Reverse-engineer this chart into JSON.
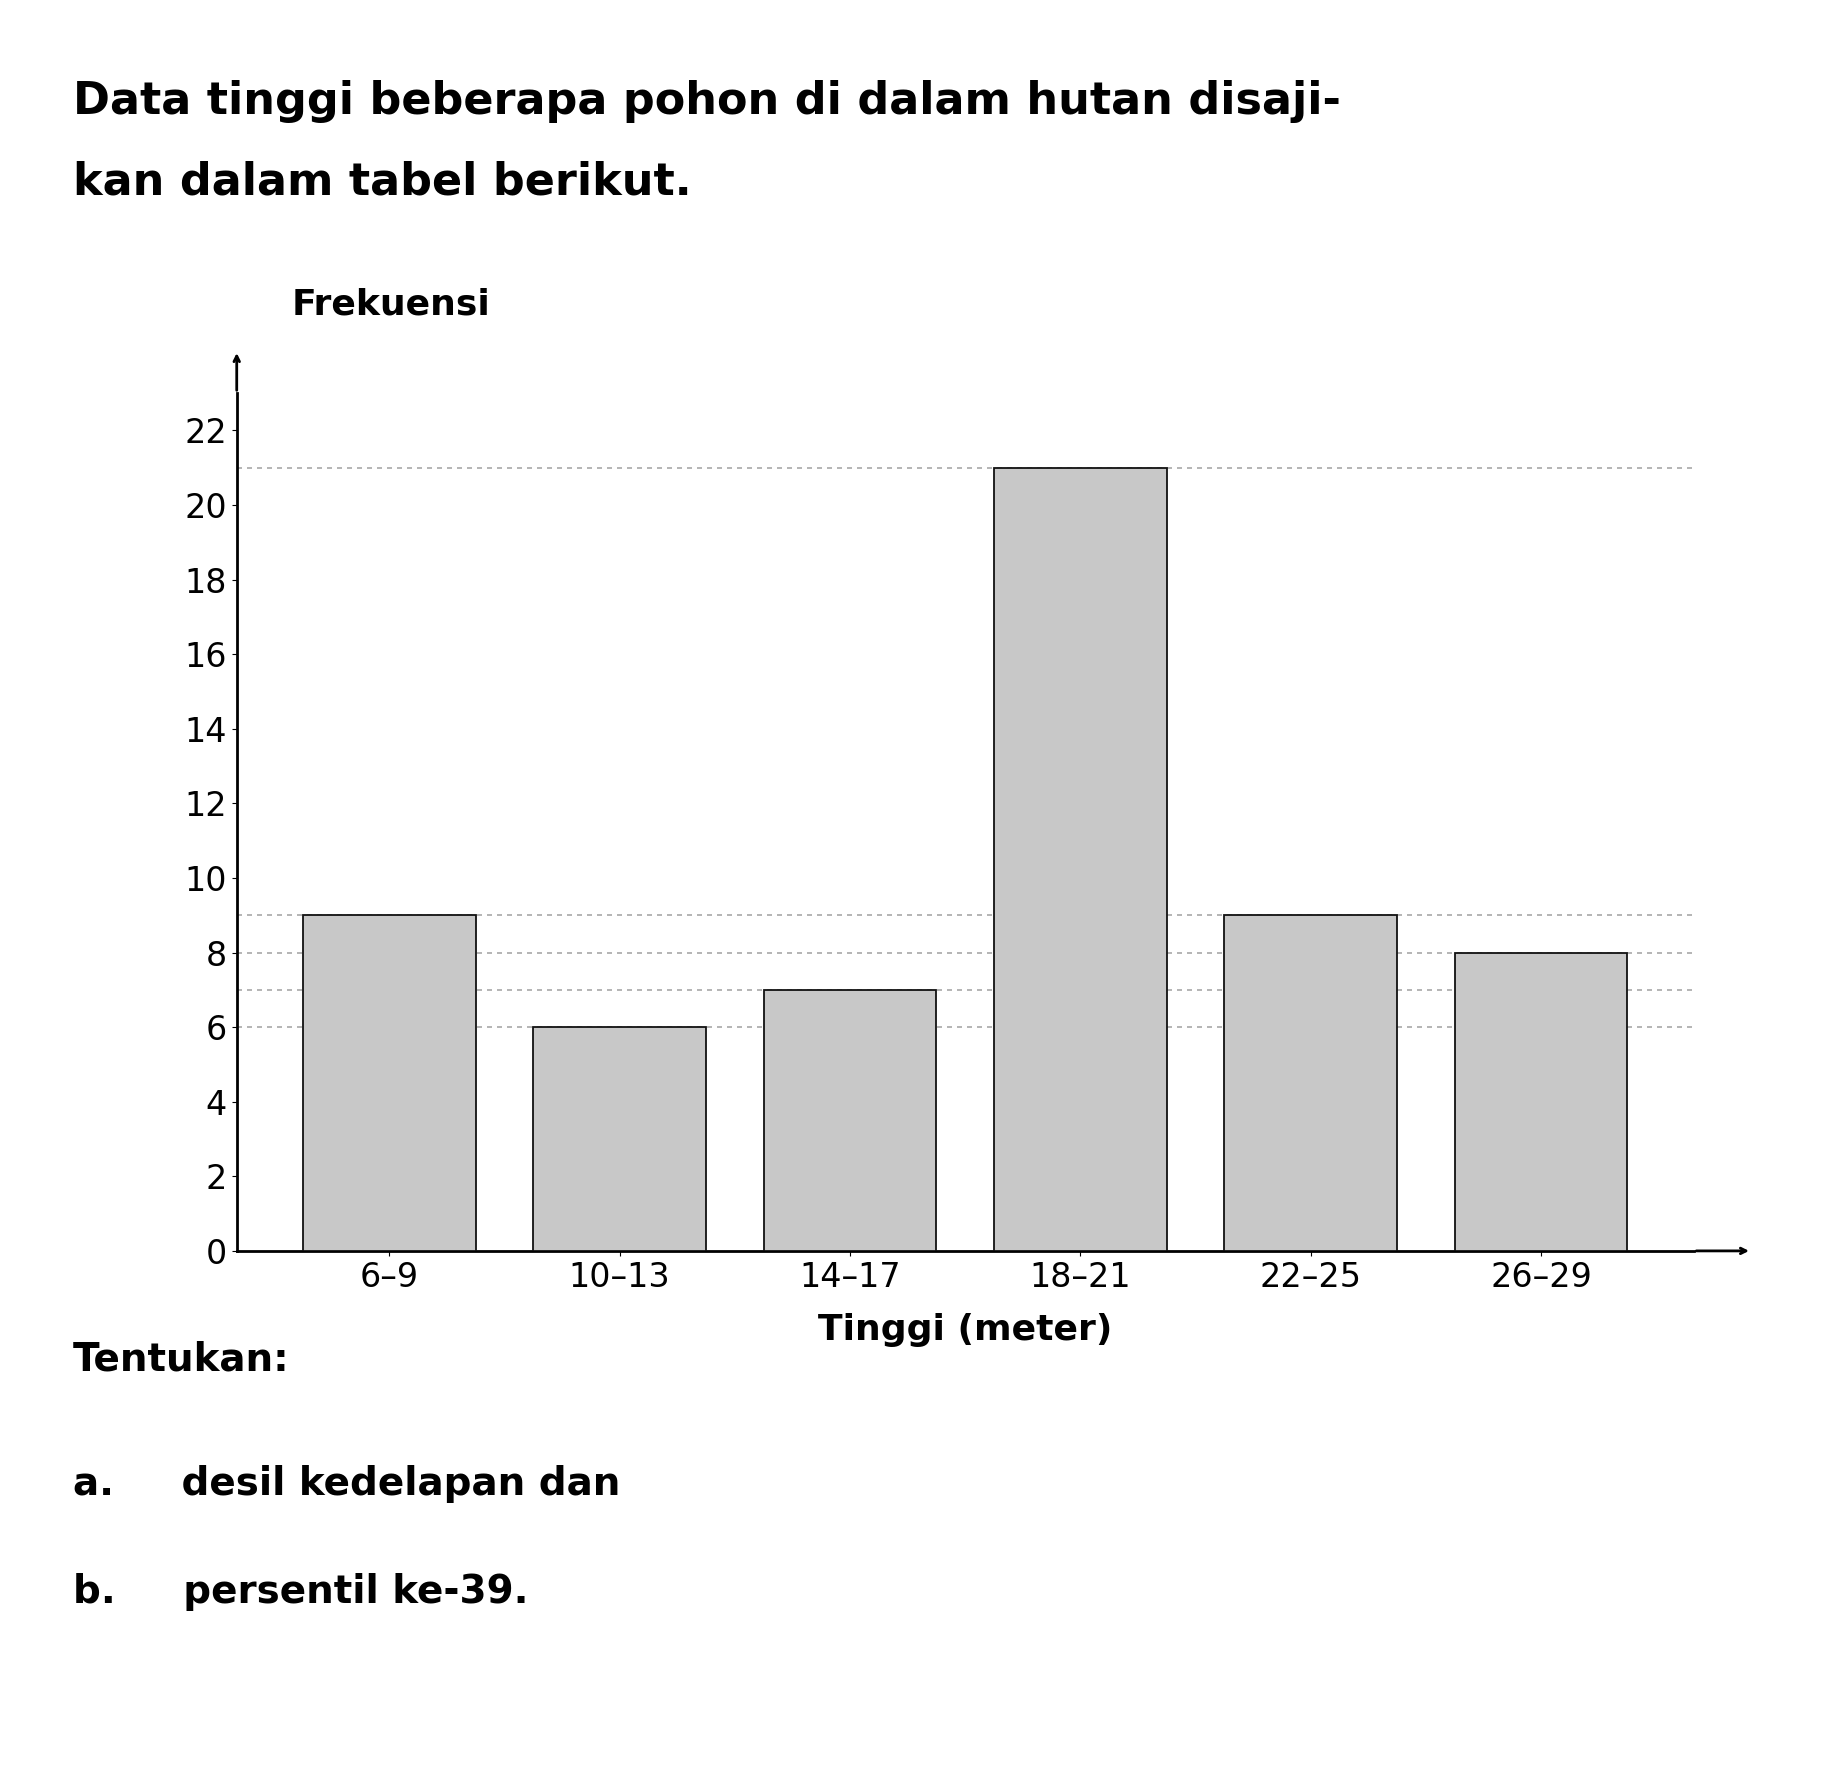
{
  "title_line1": "Data tinggi beberapa pohon di dalam hutan disaji-",
  "title_line2": "kan dalam tabel berikut.",
  "ylabel": "Frekuensi",
  "xlabel": "Tinggi (meter)",
  "categories": [
    "6–9",
    "10–13",
    "14–17",
    "18–21",
    "22–25",
    "26–29"
  ],
  "values": [
    9,
    6,
    7,
    21,
    9,
    8
  ],
  "bar_color": "#c8c8c8",
  "bar_edge_color": "#111111",
  "yticks": [
    0,
    2,
    4,
    6,
    8,
    10,
    12,
    14,
    16,
    18,
    20,
    22
  ],
  "ylim": [
    0,
    23
  ],
  "dotted_line_color": "#999999",
  "dotted_lines_y": [
    21,
    9,
    8,
    7,
    6
  ],
  "question_text": "Tentukan:",
  "question_a": "a.     desil kedelapan dan",
  "question_b": "b.     persentil ke-39.",
  "background_color": "#ffffff",
  "title_fontsize": 32,
  "axis_label_fontsize": 26,
  "tick_fontsize": 24,
  "question_fontsize": 28
}
